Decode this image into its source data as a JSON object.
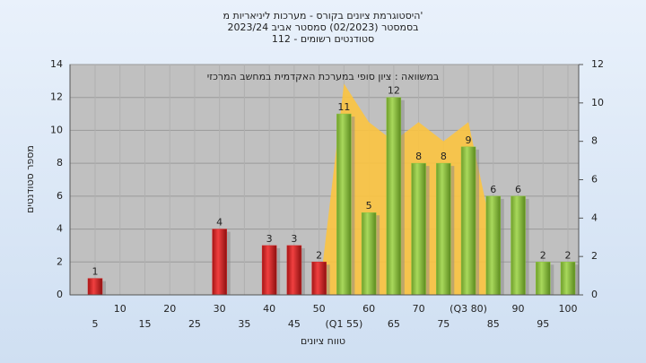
{
  "chart_data": {
    "type": "bar",
    "title": "היסטוגרמת ציונים בקורס - מערכות ליניאריות מ'",
    "subtitle": [
      "בסמסטר  (02/2023)  סמסטר אביב 2023/24",
      "סטודנטים רשומים - 112"
    ],
    "annotation": "במשוואה : ציון סופי במערכת האקדמית במחשב המרכזי",
    "x_label": "טווח ציונים",
    "y_label": "מספר סטודנטים",
    "categories": [
      "5",
      "10",
      "15",
      "20",
      "25",
      "30",
      "35",
      "40",
      "45",
      "50",
      "(Q1 55)",
      "60",
      "65",
      "70",
      "75",
      "(Q3 80)",
      "85",
      "90",
      "95",
      "100"
    ],
    "series": [
      {
        "color": "#d42a2a",
        "values": [
          1,
          0,
          0,
          0,
          0,
          4,
          0,
          3,
          3,
          2,
          null,
          null,
          null,
          null,
          null,
          null,
          null,
          null,
          null,
          null
        ]
      },
      {
        "color": "#8dc63f",
        "values": [
          null,
          null,
          null,
          null,
          null,
          null,
          null,
          null,
          null,
          null,
          11,
          5,
          12,
          8,
          8,
          9,
          6,
          6,
          2,
          2
        ]
      },
      {
        "type": "area",
        "axis": "y2",
        "color": "#fcc440",
        "values": [
          null,
          null,
          null,
          null,
          null,
          null,
          null,
          null,
          null,
          0,
          11,
          9,
          8,
          9,
          8,
          9,
          3,
          null,
          null,
          null
        ]
      }
    ],
    "ylim": [
      0,
      14
    ],
    "yticks": [
      0,
      2,
      4,
      6,
      8,
      10,
      12,
      14
    ],
    "y2lim": [
      0,
      12
    ],
    "y2ticks": [
      0,
      2,
      4,
      6,
      8,
      10,
      12
    ],
    "grid": true
  }
}
